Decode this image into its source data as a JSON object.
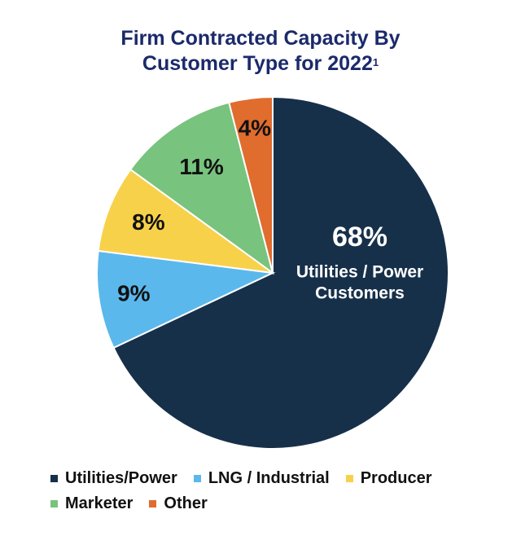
{
  "title": {
    "line1": "Firm Contracted Capacity By",
    "line2": "Customer Type for 2022",
    "footnote": "1"
  },
  "chart_data": {
    "type": "pie",
    "slices": [
      {
        "name": "Utilities/Power",
        "value": 68,
        "label": "68%",
        "sublabel": [
          "Utilities / Power",
          "Customers"
        ],
        "color": "#17304a",
        "label_color": "#ffffff"
      },
      {
        "name": "LNG / Industrial",
        "value": 9,
        "label": "9%",
        "color": "#5bb8ec",
        "label_color": "#111111"
      },
      {
        "name": "Producer",
        "value": 8,
        "label": "8%",
        "color": "#f8d14b",
        "label_color": "#111111"
      },
      {
        "name": "Marketer",
        "value": 11,
        "label": "11%",
        "color": "#78c37e",
        "label_color": "#111111"
      },
      {
        "name": "Other",
        "value": 4,
        "label": "4%",
        "color": "#e06c2e",
        "label_color": "#111111"
      }
    ],
    "legend_placement": "bottom"
  },
  "legend": {
    "rows": [
      [
        {
          "label": "Utilities/Power",
          "color": "#17304a"
        },
        {
          "label": "LNG / Industrial",
          "color": "#5bb8ec"
        },
        {
          "label": "Producer",
          "color": "#f8d14b"
        }
      ],
      [
        {
          "label": "Marketer",
          "color": "#78c37e"
        },
        {
          "label": "Other",
          "color": "#e06c2e"
        }
      ]
    ]
  }
}
